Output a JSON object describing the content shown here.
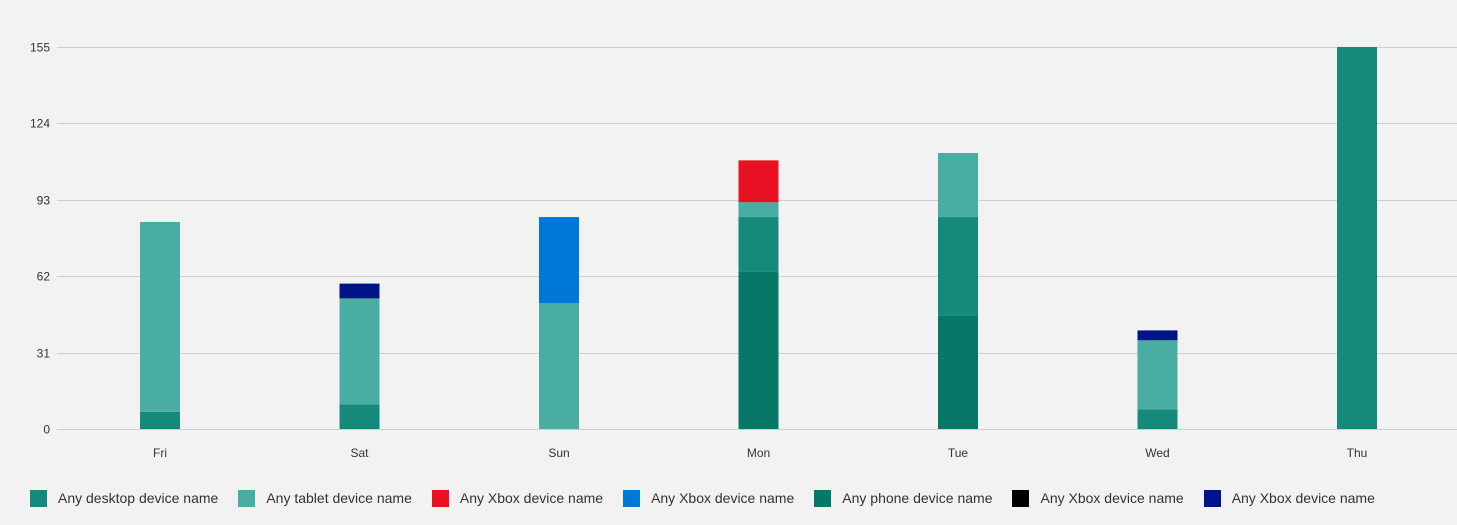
{
  "chart_data": {
    "type": "bar",
    "stacked": true,
    "categories": [
      "Fri",
      "Sat",
      "Sun",
      "Mon",
      "Tue",
      "Wed",
      "Thu"
    ],
    "ylim": [
      0,
      155
    ],
    "yticks": [
      0,
      31,
      62,
      93,
      124,
      155
    ],
    "grid": true,
    "legend_position": "bottom",
    "series": [
      {
        "name": "Any desktop device name",
        "color": "#15897a",
        "values": [
          7,
          10,
          0,
          22,
          40,
          8,
          155
        ]
      },
      {
        "name": "Any tablet device name",
        "color": "#4aada1",
        "values": [
          77,
          43,
          51,
          6,
          26,
          28,
          0
        ]
      },
      {
        "name": "Any Xbox device name",
        "color": "#e81123",
        "values": [
          0,
          0,
          0,
          17,
          0,
          0,
          0
        ]
      },
      {
        "name": "Any Xbox device name",
        "color": "#0078d7",
        "values": [
          0,
          0,
          35,
          0,
          0,
          0,
          0
        ]
      },
      {
        "name": "Any phone device name",
        "color": "#077868",
        "values": [
          0,
          0,
          0,
          64,
          46,
          0,
          0
        ]
      },
      {
        "name": "Any Xbox device name",
        "color": "#000000",
        "values": [
          0,
          0,
          0,
          0,
          0,
          0,
          0
        ]
      },
      {
        "name": "Any Xbox device name",
        "color": "#001489",
        "values": [
          0,
          6,
          0,
          0,
          0,
          4,
          0
        ]
      }
    ],
    "stack_order": [
      4,
      0,
      1,
      3,
      2,
      5,
      6
    ]
  }
}
